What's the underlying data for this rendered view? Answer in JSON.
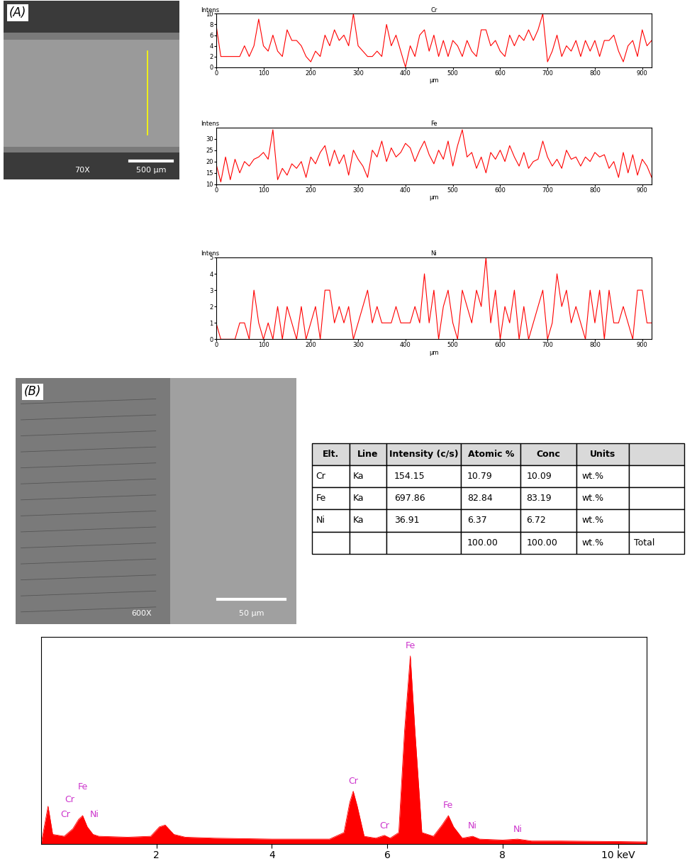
{
  "chart_data": [
    {
      "type": "line",
      "title": "Cr",
      "x_label": "µm",
      "y_label": "Intens",
      "color": "#ff0000",
      "x": [
        0,
        10,
        20,
        30,
        40,
        50,
        60,
        70,
        80,
        90,
        100,
        110,
        120,
        130,
        140,
        150,
        160,
        170,
        180,
        190,
        200,
        210,
        220,
        230,
        240,
        250,
        260,
        270,
        280,
        290,
        300,
        310,
        320,
        330,
        340,
        350,
        360,
        370,
        380,
        390,
        400,
        410,
        420,
        430,
        440,
        450,
        460,
        470,
        480,
        490,
        500,
        510,
        520,
        530,
        540,
        550,
        560,
        570,
        580,
        590,
        600,
        610,
        620,
        630,
        640,
        650,
        660,
        670,
        680,
        690,
        700,
        710,
        720,
        730,
        740,
        750,
        760,
        770,
        780,
        790,
        800,
        810,
        820,
        830,
        840,
        850,
        860,
        870,
        880,
        890,
        900,
        910,
        920
      ],
      "values": [
        8,
        2,
        2,
        2,
        2,
        2,
        4,
        2,
        4,
        9,
        4,
        3,
        6,
        3,
        2,
        7,
        5,
        5,
        4,
        2,
        1,
        3,
        2,
        6,
        4,
        7,
        5,
        6,
        4,
        10,
        4,
        3,
        2,
        2,
        3,
        2,
        8,
        4,
        6,
        3,
        0,
        4,
        2,
        6,
        7,
        3,
        6,
        2,
        5,
        2,
        5,
        4,
        2,
        5,
        3,
        2,
        7,
        7,
        4,
        5,
        3,
        2,
        6,
        4,
        6,
        5,
        7,
        5,
        7,
        10,
        1,
        3,
        6,
        2,
        4,
        3,
        5,
        2,
        5,
        3,
        5,
        2,
        5,
        5,
        6,
        3,
        1,
        4,
        5,
        2,
        7,
        4,
        5
      ],
      "xlim": [
        0,
        920
      ],
      "xticks": [
        0,
        100,
        200,
        300,
        400,
        500,
        600,
        700,
        800,
        900
      ],
      "ylim": [
        0,
        10
      ],
      "yticks": [
        0,
        2,
        4,
        6,
        8,
        10
      ]
    },
    {
      "type": "line",
      "title": "Fe",
      "x_label": "µm",
      "y_label": "Intens",
      "color": "#ff0000",
      "x": [
        0,
        10,
        20,
        30,
        40,
        50,
        60,
        70,
        80,
        90,
        100,
        110,
        120,
        130,
        140,
        150,
        160,
        170,
        180,
        190,
        200,
        210,
        220,
        230,
        240,
        250,
        260,
        270,
        280,
        290,
        300,
        310,
        320,
        330,
        340,
        350,
        360,
        370,
        380,
        390,
        400,
        410,
        420,
        430,
        440,
        450,
        460,
        470,
        480,
        490,
        500,
        510,
        520,
        530,
        540,
        550,
        560,
        570,
        580,
        590,
        600,
        610,
        620,
        630,
        640,
        650,
        660,
        670,
        680,
        690,
        700,
        710,
        720,
        730,
        740,
        750,
        760,
        770,
        780,
        790,
        800,
        810,
        820,
        830,
        840,
        850,
        860,
        870,
        880,
        890,
        900,
        910,
        920
      ],
      "values": [
        19,
        11,
        22,
        12,
        21,
        15,
        20,
        18,
        21,
        22,
        24,
        21,
        34,
        12,
        17,
        14,
        19,
        17,
        20,
        13,
        22,
        19,
        24,
        27,
        18,
        25,
        19,
        23,
        14,
        25,
        21,
        18,
        13,
        25,
        22,
        29,
        20,
        26,
        22,
        24,
        28,
        26,
        20,
        25,
        29,
        23,
        19,
        25,
        21,
        29,
        18,
        27,
        34,
        22,
        24,
        17,
        22,
        15,
        24,
        21,
        25,
        20,
        27,
        22,
        18,
        24,
        17,
        20,
        21,
        29,
        22,
        18,
        21,
        17,
        25,
        21,
        22,
        18,
        22,
        20,
        24,
        22,
        23,
        17,
        20,
        13,
        24,
        15,
        23,
        14,
        21,
        18,
        13
      ],
      "xlim": [
        0,
        920
      ],
      "xticks": [
        0,
        100,
        200,
        300,
        400,
        500,
        600,
        700,
        800,
        900
      ],
      "ylim": [
        10,
        35
      ],
      "yticks": [
        10,
        15,
        20,
        25,
        30
      ]
    },
    {
      "type": "line",
      "title": "Ni",
      "x_label": "µm",
      "y_label": "Intens",
      "color": "#ff0000",
      "x": [
        0,
        10,
        20,
        30,
        40,
        50,
        60,
        70,
        80,
        90,
        100,
        110,
        120,
        130,
        140,
        150,
        160,
        170,
        180,
        190,
        200,
        210,
        220,
        230,
        240,
        250,
        260,
        270,
        280,
        290,
        300,
        310,
        320,
        330,
        340,
        350,
        360,
        370,
        380,
        390,
        400,
        410,
        420,
        430,
        440,
        450,
        460,
        470,
        480,
        490,
        500,
        510,
        520,
        530,
        540,
        550,
        560,
        570,
        580,
        590,
        600,
        610,
        620,
        630,
        640,
        650,
        660,
        670,
        680,
        690,
        700,
        710,
        720,
        730,
        740,
        750,
        760,
        770,
        780,
        790,
        800,
        810,
        820,
        830,
        840,
        850,
        860,
        870,
        880,
        890,
        900,
        910,
        920
      ],
      "values": [
        1,
        0,
        0,
        0,
        0,
        1,
        1,
        0,
        3,
        1,
        0,
        1,
        0,
        2,
        0,
        2,
        1,
        0,
        2,
        0,
        1,
        2,
        0,
        3,
        3,
        1,
        2,
        1,
        2,
        0,
        1,
        2,
        3,
        1,
        2,
        1,
        1,
        1,
        2,
        1,
        1,
        1,
        2,
        1,
        4,
        1,
        3,
        0,
        2,
        3,
        1,
        0,
        3,
        2,
        1,
        3,
        2,
        5,
        1,
        3,
        0,
        2,
        1,
        3,
        0,
        2,
        0,
        1,
        2,
        3,
        0,
        1,
        4,
        2,
        3,
        1,
        2,
        1,
        0,
        3,
        1,
        3,
        0,
        3,
        1,
        1,
        2,
        1,
        0,
        3,
        3,
        1,
        1
      ],
      "xlim": [
        0,
        920
      ],
      "xticks": [
        0,
        100,
        200,
        300,
        400,
        500,
        600,
        700,
        800,
        900
      ],
      "ylim": [
        0,
        5
      ],
      "yticks": [
        0,
        1,
        2,
        3,
        4,
        5
      ]
    },
    {
      "type": "area",
      "color": "#ff0000",
      "tick_labels": "x",
      "x": [
        0.0,
        0.12,
        0.2,
        0.4,
        0.55,
        0.65,
        0.72,
        0.8,
        0.9,
        1.0,
        1.5,
        1.9,
        2.05,
        2.15,
        2.3,
        2.5,
        3.0,
        4.0,
        5.0,
        5.25,
        5.35,
        5.41,
        5.48,
        5.6,
        5.8,
        5.95,
        6.05,
        6.2,
        6.3,
        6.4,
        6.48,
        6.6,
        6.8,
        6.95,
        7.06,
        7.15,
        7.3,
        7.48,
        7.6,
        8.0,
        8.26,
        8.5,
        9.0,
        10.0,
        10.5
      ],
      "values": [
        0,
        20,
        5,
        4,
        8,
        13,
        15,
        9,
        5,
        4,
        3.5,
        4,
        9,
        10,
        5,
        3.5,
        3,
        2.5,
        2.5,
        6,
        22,
        28,
        20,
        4,
        3,
        4.5,
        3,
        6,
        60,
        100,
        60,
        6,
        4,
        10,
        15,
        9,
        3,
        4,
        2.5,
        2,
        2.5,
        1.5,
        1.5,
        1.2,
        1
      ],
      "xlim": [
        0,
        10.5
      ],
      "xticks": [
        2,
        4,
        6,
        8,
        {
          "value": 10,
          "label": "10 keV"
        }
      ],
      "ylim": [
        0,
        110
      ],
      "annotations": [
        {
          "text": "Fe",
          "x": 0.72,
          "y": 28
        },
        {
          "text": "Cr",
          "x": 0.5,
          "y": 21
        },
        {
          "text": "Cr",
          "x": 0.42,
          "y": 13
        },
        {
          "text": "Ni",
          "x": 0.92,
          "y": 13
        },
        {
          "text": "Cr",
          "x": 5.41,
          "y": 31
        },
        {
          "text": "Cr",
          "x": 5.95,
          "y": 7
        },
        {
          "text": "Fe",
          "x": 6.4,
          "y": 103
        },
        {
          "text": "Fe",
          "x": 7.06,
          "y": 18
        },
        {
          "text": "Ni",
          "x": 7.48,
          "y": 7
        },
        {
          "text": "Ni",
          "x": 8.26,
          "y": 5
        }
      ]
    }
  ],
  "images": [
    {
      "label": "(A)",
      "magnification": "70X",
      "scale_bar": "500 µm"
    },
    {
      "label": "(B)",
      "magnification": "600X",
      "scale_bar": "50 µm"
    }
  ],
  "table": {
    "header": [
      "Elt.",
      "Line",
      "Intensity (c/s)",
      "Atomic %",
      "Conc",
      "Units",
      ""
    ],
    "rows": [
      [
        "Cr",
        "Ka",
        "154.15",
        "10.79",
        "10.09",
        "wt.%",
        ""
      ],
      [
        "Fe",
        "Ka",
        "697.86",
        "82.84",
        "83.19",
        "wt.%",
        ""
      ],
      [
        "Ni",
        "Ka",
        "36.91",
        "6.37",
        "6.72",
        "wt.%",
        ""
      ],
      [
        "",
        "",
        "",
        "100.00",
        "100.00",
        "wt.%",
        "Total"
      ]
    ]
  }
}
